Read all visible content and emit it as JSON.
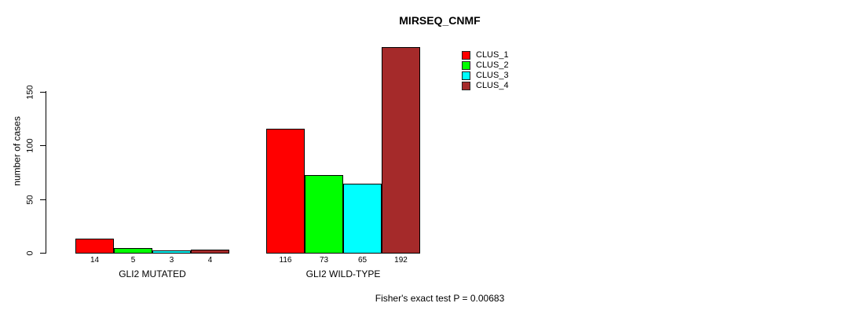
{
  "title": "MIRSEQ_CNMF",
  "y_axis": {
    "label": "number of cases",
    "ticks": [
      0,
      50,
      100,
      150
    ]
  },
  "groups": [
    {
      "label": "GLI2 MUTATED"
    },
    {
      "label": "GLI2 WILD-TYPE"
    }
  ],
  "legend": {
    "items": [
      {
        "label": "CLUS_1",
        "color": "#FF0000"
      },
      {
        "label": "CLUS_2",
        "color": "#00FF00"
      },
      {
        "label": "CLUS_3",
        "color": "#00FFFF"
      },
      {
        "label": "CLUS_4",
        "color": "#A52A2A"
      }
    ]
  },
  "footer": "Fisher's exact test P = 0.00683",
  "chart_data": {
    "type": "bar",
    "title": "MIRSEQ_CNMF",
    "xlabel": "",
    "ylabel": "number of cases",
    "ylim": [
      0,
      150
    ],
    "yticks": [
      0,
      50,
      100,
      150
    ],
    "grid": false,
    "legend_position": "top-right",
    "categories": [
      "GLI2 MUTATED",
      "GLI2 WILD-TYPE"
    ],
    "series": [
      {
        "name": "CLUS_1",
        "color": "#FF0000",
        "values": [
          14,
          116
        ]
      },
      {
        "name": "CLUS_2",
        "color": "#00FF00",
        "values": [
          5,
          73
        ]
      },
      {
        "name": "CLUS_3",
        "color": "#00FFFF",
        "values": [
          3,
          65
        ]
      },
      {
        "name": "CLUS_4",
        "color": "#A52A2A",
        "values": [
          4,
          192
        ]
      }
    ],
    "bar_value_labels": [
      [
        14,
        5,
        3,
        4
      ],
      [
        116,
        73,
        65,
        192
      ]
    ],
    "annotation": "Fisher's exact test P = 0.00683"
  }
}
